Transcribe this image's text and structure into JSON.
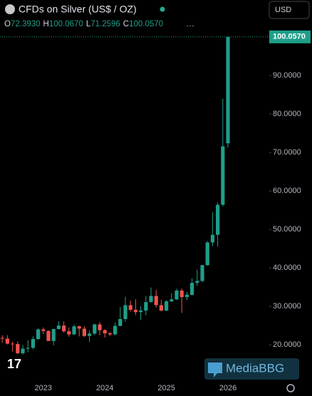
{
  "chart_data": {
    "type": "candlestick",
    "title": "CFDs on Silver (US$ / OZ)",
    "currency": "USD",
    "ohlc_legend": [
      {
        "key": "O",
        "label": "72.3930"
      },
      {
        "key": "H",
        "label": "100.0670"
      },
      {
        "key": "L",
        "label": "71.2596"
      },
      {
        "key": "C",
        "label": "100.0570"
      }
    ],
    "last_price_label": "100.0570",
    "watermark": "MediaBBG",
    "categories": [
      null,
      null,
      null,
      null,
      null,
      null,
      null,
      null,
      "2023",
      null,
      null,
      null,
      null,
      null,
      null,
      null,
      null,
      null,
      null,
      null,
      "2024",
      null,
      null,
      null,
      null,
      null,
      null,
      null,
      null,
      null,
      null,
      null,
      "2025",
      null,
      null,
      null,
      null,
      null,
      null,
      null,
      null,
      null,
      null,
      null,
      "2026"
    ],
    "open": [
      21.8,
      21.6,
      20.3,
      20.2,
      17.8,
      19.0,
      19.2,
      21.5,
      24.0,
      23.6,
      21.0,
      24.1,
      25.0,
      23.5,
      22.7,
      24.8,
      24.2,
      22.3,
      22.9,
      25.3,
      23.8,
      23.0,
      22.7,
      24.9,
      26.7,
      30.3,
      29.1,
      28.5,
      28.9,
      31.1,
      32.7,
      30.3,
      28.9,
      31.3,
      31.8,
      34.1,
      32.4,
      33.0,
      36.1,
      36.6,
      40.7,
      46.6,
      48.6,
      56.4,
      72.393
    ],
    "high": [
      22.5,
      22.5,
      20.8,
      20.9,
      19.9,
      21.2,
      22.2,
      24.3,
      24.5,
      23.8,
      24.2,
      26.1,
      26.1,
      24.5,
      25.3,
      25.0,
      24.9,
      23.7,
      25.5,
      25.9,
      24.1,
      23.3,
      25.8,
      29.8,
      32.5,
      31.5,
      31.8,
      30.0,
      32.7,
      34.9,
      34.3,
      31.7,
      31.6,
      33.4,
      34.6,
      34.6,
      33.7,
      37.3,
      39.5,
      40.8,
      47.0,
      54.5,
      57.0,
      84.0,
      100.067
    ],
    "low": [
      20.5,
      20.1,
      18.2,
      17.6,
      17.5,
      18.1,
      18.8,
      21.3,
      22.8,
      21.0,
      19.9,
      24.0,
      23.2,
      22.1,
      22.5,
      22.2,
      22.0,
      20.7,
      22.5,
      22.5,
      21.9,
      22.3,
      22.5,
      24.8,
      26.0,
      28.6,
      27.7,
      26.5,
      27.7,
      31.0,
      29.7,
      28.7,
      28.8,
      31.1,
      31.6,
      28.3,
      31.6,
      32.8,
      35.3,
      36.2,
      40.6,
      45.6,
      45.5,
      56.0,
      71.2596
    ],
    "close": [
      21.6,
      20.3,
      20.2,
      17.8,
      19.0,
      19.2,
      21.5,
      24.0,
      23.6,
      21.0,
      24.1,
      25.0,
      23.5,
      22.7,
      24.8,
      24.2,
      22.3,
      22.9,
      25.3,
      23.8,
      23.0,
      22.7,
      24.9,
      26.7,
      30.3,
      29.1,
      28.5,
      28.9,
      31.1,
      32.7,
      30.3,
      28.9,
      31.3,
      31.8,
      34.1,
      32.4,
      33.0,
      36.1,
      36.6,
      40.7,
      46.6,
      48.6,
      56.4,
      71.6,
      100.057
    ],
    "up_color": "#1f9e89",
    "down_color": "#ef5350",
    "ylim": [
      11.5,
      101.5
    ],
    "yticks": [
      {
        "value": 20,
        "label": "20.0000"
      },
      {
        "value": 30,
        "label": "30.0000"
      },
      {
        "value": 40,
        "label": "40.0000"
      },
      {
        "value": 50,
        "label": "50.0000"
      },
      {
        "value": 60,
        "label": "60.0000"
      },
      {
        "value": 70,
        "label": "70.0000"
      },
      {
        "value": 80,
        "label": "80.0000"
      },
      {
        "value": 90,
        "label": "90.0000"
      }
    ]
  }
}
